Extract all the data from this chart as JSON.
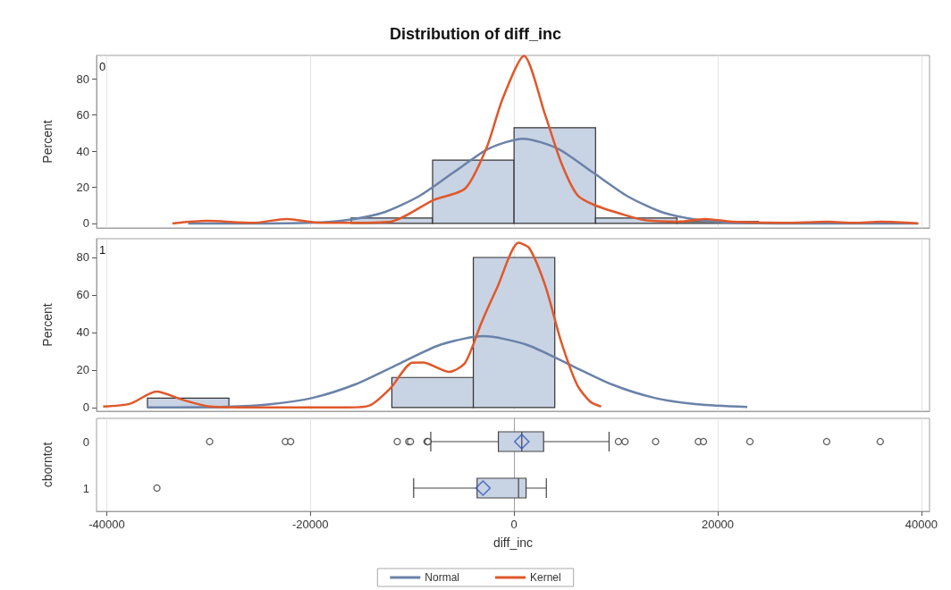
{
  "chart_data": [
    {
      "type": "histogram",
      "title": "Distribution of diff_inc",
      "ylabel": "Percent",
      "annotations": [
        "0"
      ],
      "xlim": [
        -41000,
        40800
      ],
      "xticks": [
        -40000,
        -20000,
        0,
        20000,
        40000
      ],
      "ylim": [
        -2.5,
        93
      ],
      "yticks": [
        0,
        20,
        40,
        60,
        80
      ],
      "grid": "x",
      "tick_labels": "y",
      "legend": "bottom",
      "series": [
        {
          "type": "histogram",
          "color": "#c8d3e4",
          "bins": [
            -16000,
            -8000,
            0,
            8000,
            16000,
            24000
          ],
          "values": [
            3,
            35,
            53,
            3,
            1
          ]
        },
        {
          "type": "line",
          "name": "Normal",
          "color": "#6a82a8",
          "x": [
            -32000,
            -26300,
            -19500,
            -16100,
            -12700,
            -9300,
            -5900,
            -2500,
            900,
            4300,
            7700,
            11100,
            14500,
            17900,
            21300,
            28100,
            39700
          ],
          "values": [
            0,
            0,
            0.5,
            2.1,
            6.3,
            15.2,
            28.4,
            41.4,
            46.9,
            41.4,
            28.4,
            15.2,
            6.3,
            2.1,
            0.5,
            0,
            0
          ]
        },
        {
          "type": "line",
          "name": "Kernel",
          "color": "#e0582a",
          "x": [
            -33550,
            -30150,
            -25700,
            -22300,
            -19430,
            -16290,
            -12100,
            -7920,
            -4785,
            -2690,
            -1125,
            970,
            3060,
            4630,
            6200,
            7770,
            10900,
            13000,
            16140,
            18750,
            21365,
            26600,
            30780,
            33400,
            36000,
            39670
          ],
          "values": [
            0,
            1.4,
            0.3,
            2.5,
            0.5,
            0.3,
            1,
            12.9,
            19.4,
            42,
            69,
            92.8,
            60,
            33.6,
            15.8,
            10.5,
            4.6,
            1.7,
            1,
            2.5,
            1,
            0.3,
            1,
            0.3,
            1,
            0
          ]
        }
      ]
    },
    {
      "type": "histogram",
      "ylabel": "Percent",
      "annotations": [
        "1"
      ],
      "xlim": [
        -41000,
        40800
      ],
      "xticks": [
        -40000,
        -20000,
        0,
        20000,
        40000
      ],
      "ylim": [
        -2,
        90
      ],
      "yticks": [
        0,
        20,
        40,
        60,
        80
      ],
      "grid": "x",
      "tick_labels": "y",
      "series": [
        {
          "type": "histogram",
          "color": "#c8d3e4",
          "bins": [
            -36000,
            -28000,
            -20000,
            -12000,
            -4000,
            4000
          ],
          "values": [
            5,
            0,
            0,
            16,
            80
          ]
        },
        {
          "type": "line",
          "name": "Normal",
          "color": "#6a82a8",
          "x": [
            -36000,
            -28200,
            -24000,
            -19800,
            -15600,
            -11400,
            -7200,
            -3000,
            1200,
            5400,
            9600,
            13800,
            18000,
            22900
          ],
          "values": [
            0,
            0.4,
            1.7,
            5.1,
            12.3,
            23,
            33.5,
            38,
            33.5,
            23,
            12.3,
            5.1,
            1.7,
            0.3
          ]
        },
        {
          "type": "line",
          "name": "Kernel",
          "color": "#e0582a",
          "x": [
            -40350,
            -37700,
            -35120,
            -32500,
            -29890,
            -25700,
            -16290,
            -14200,
            -12100,
            -10000,
            -8970,
            -6350,
            -4785,
            -3220,
            -1650,
            445,
            1490,
            3060,
            4630,
            6200,
            7500,
            8550
          ],
          "values": [
            0.5,
            2,
            8.5,
            4,
            0.5,
            0,
            0,
            1,
            10.5,
            23.9,
            24,
            19,
            24,
            45,
            64,
            87.8,
            85,
            65,
            35,
            12,
            3,
            0.5
          ]
        }
      ]
    },
    {
      "type": "box",
      "orientation": "horizontal",
      "categories": [
        "0",
        "1"
      ],
      "xlabel": "diff_inc",
      "ylabel": "cborntot",
      "xlim": [
        -41000,
        40800
      ],
      "xticks": [
        -40000,
        -20000,
        0,
        20000,
        40000
      ],
      "grid": "x",
      "color": "#c8d3e4",
      "boxes": [
        {
          "low": -8180,
          "q1": -1540,
          "median": 760,
          "q3": 2900,
          "high": 9330,
          "mean": 760,
          "outliers": [
            -29890,
            -22460,
            -21940,
            -11470,
            -10340,
            -10170,
            -8550,
            -8450,
            10250,
            10900,
            13900,
            18100,
            18600,
            23160,
            30700,
            35960
          ]
        },
        {
          "low": -9860,
          "q1": -3630,
          "median": 440,
          "q3": 1180,
          "high": 3170,
          "mean": -3050,
          "outliers": [
            -35070
          ]
        }
      ]
    }
  ]
}
